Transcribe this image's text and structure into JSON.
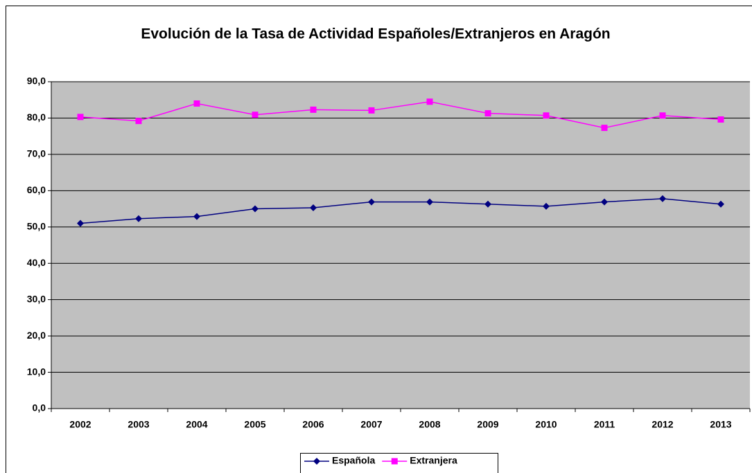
{
  "chart_data": {
    "type": "line",
    "title": "Evolución de la Tasa de Actividad Españoles/Extranjeros en Aragón",
    "categories": [
      "2002",
      "2003",
      "2004",
      "2005",
      "2006",
      "2007",
      "2008",
      "2009",
      "2010",
      "2011",
      "2012",
      "2013"
    ],
    "series": [
      {
        "name": "Española",
        "color": "#000080",
        "marker": "diamond",
        "values": [
          51.0,
          52.3,
          52.9,
          55.0,
          55.3,
          56.9,
          56.9,
          56.3,
          55.7,
          56.9,
          57.8,
          56.3
        ]
      },
      {
        "name": "Extranjera",
        "color": "#ff00ff",
        "marker": "square",
        "values": [
          80.3,
          79.2,
          84.0,
          80.9,
          82.3,
          82.1,
          84.5,
          81.3,
          80.7,
          77.3,
          80.7,
          79.6
        ]
      }
    ],
    "ylim": [
      0,
      90
    ],
    "yticks": [
      {
        "value": 0,
        "label": "0,0"
      },
      {
        "value": 10,
        "label": "10,0"
      },
      {
        "value": 20,
        "label": "20,0"
      },
      {
        "value": 30,
        "label": "30,0"
      },
      {
        "value": 40,
        "label": "40,0"
      },
      {
        "value": 50,
        "label": "50,0"
      },
      {
        "value": 60,
        "label": "60,0"
      },
      {
        "value": 70,
        "label": "70,0"
      },
      {
        "value": 80,
        "label": "80,0"
      },
      {
        "value": 90,
        "label": "90,0"
      }
    ],
    "grid": true,
    "legend": "bottom"
  }
}
